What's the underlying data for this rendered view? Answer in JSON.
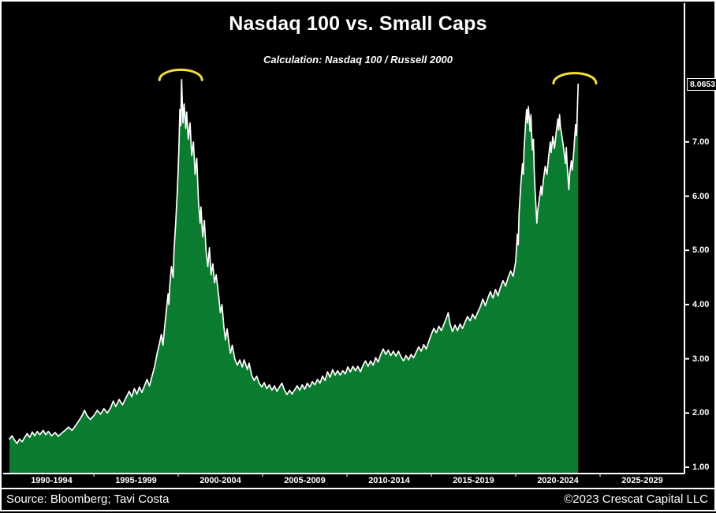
{
  "title": "Nasdaq 100 vs. Small Caps",
  "subtitle": "Calculation: Nasdaq 100 / Russell 2000",
  "footer": {
    "source": "Source: Bloomberg; Tavi Costa",
    "copyright": "©2023 Crescat Capital LLC"
  },
  "colors": {
    "background": "#000000",
    "area_fill": "#0b7b2f",
    "line": "#ffffff",
    "axis": "#ffffff",
    "highlight_arc": "#f7df3a",
    "text": "#ffffff"
  },
  "chart_data": {
    "type": "area",
    "title": "Nasdaq 100 vs. Small Caps",
    "subtitle": "Calculation: Nasdaq 100 / Russell 2000",
    "grid": false,
    "legend": false,
    "current_value": 8.0653,
    "current_value_label": "8.0653",
    "x_axis": {
      "min_year": 1990,
      "max_year": 2030,
      "tick_labels": [
        "1990-1994",
        "1995-1999",
        "2000-2004",
        "2005-2009",
        "2010-2014",
        "2015-2019",
        "2020-2024",
        "2025-2029"
      ],
      "tick_center_years": [
        1992.5,
        1997.5,
        2002.5,
        2007.5,
        2012.5,
        2017.5,
        2022.5,
        2027.5
      ],
      "boundary_years": [
        1995,
        2000,
        2005,
        2010,
        2015,
        2020,
        2025
      ]
    },
    "y_axis": {
      "min": 0.88,
      "max": 8.2,
      "ticks": [
        7,
        6,
        5,
        4,
        3,
        2,
        1
      ],
      "tick_labels": [
        "7.00",
        "6.00",
        "5.00",
        "4.00",
        "3.00",
        "2.00",
        "1.00"
      ]
    },
    "annotations": [
      {
        "type": "arc",
        "label": "dot-com bubble peak highlight",
        "center_year": 2000.15,
        "apex_value": 8.33
      },
      {
        "type": "arc",
        "label": "current peak highlight",
        "center_year": 2023.5,
        "apex_value": 8.27
      }
    ],
    "series": [
      {
        "name": "Nasdaq 100 / Russell 2000",
        "points": [
          [
            1990.0,
            1.52
          ],
          [
            1990.15,
            1.58
          ],
          [
            1990.3,
            1.5
          ],
          [
            1990.45,
            1.44
          ],
          [
            1990.6,
            1.52
          ],
          [
            1990.75,
            1.47
          ],
          [
            1990.9,
            1.55
          ],
          [
            1991.05,
            1.62
          ],
          [
            1991.2,
            1.55
          ],
          [
            1991.35,
            1.65
          ],
          [
            1991.5,
            1.58
          ],
          [
            1991.65,
            1.66
          ],
          [
            1991.8,
            1.6
          ],
          [
            1992.0,
            1.68
          ],
          [
            1992.15,
            1.6
          ],
          [
            1992.3,
            1.66
          ],
          [
            1992.5,
            1.58
          ],
          [
            1992.7,
            1.64
          ],
          [
            1992.9,
            1.57
          ],
          [
            1993.1,
            1.63
          ],
          [
            1993.3,
            1.68
          ],
          [
            1993.5,
            1.74
          ],
          [
            1993.7,
            1.68
          ],
          [
            1993.9,
            1.76
          ],
          [
            1994.1,
            1.85
          ],
          [
            1994.3,
            1.95
          ],
          [
            1994.45,
            2.05
          ],
          [
            1994.6,
            1.95
          ],
          [
            1994.8,
            1.88
          ],
          [
            1995.0,
            1.95
          ],
          [
            1995.2,
            2.05
          ],
          [
            1995.4,
            1.98
          ],
          [
            1995.6,
            2.08
          ],
          [
            1995.8,
            2.0
          ],
          [
            1996.0,
            2.1
          ],
          [
            1996.15,
            2.22
          ],
          [
            1996.3,
            2.12
          ],
          [
            1996.5,
            2.25
          ],
          [
            1996.7,
            2.15
          ],
          [
            1996.9,
            2.28
          ],
          [
            1997.1,
            2.4
          ],
          [
            1997.25,
            2.3
          ],
          [
            1997.4,
            2.45
          ],
          [
            1997.55,
            2.35
          ],
          [
            1997.7,
            2.48
          ],
          [
            1997.85,
            2.38
          ],
          [
            1998.0,
            2.5
          ],
          [
            1998.15,
            2.62
          ],
          [
            1998.3,
            2.5
          ],
          [
            1998.45,
            2.68
          ],
          [
            1998.6,
            2.85
          ],
          [
            1998.75,
            3.1
          ],
          [
            1998.9,
            3.3
          ],
          [
            1999.0,
            3.45
          ],
          [
            1999.1,
            3.25
          ],
          [
            1999.2,
            3.6
          ],
          [
            1999.3,
            3.9
          ],
          [
            1999.4,
            4.2
          ],
          [
            1999.45,
            4.0
          ],
          [
            1999.5,
            4.35
          ],
          [
            1999.6,
            4.7
          ],
          [
            1999.7,
            4.5
          ],
          [
            1999.75,
            5.0
          ],
          [
            1999.85,
            5.5
          ],
          [
            1999.95,
            6.1
          ],
          [
            2000.0,
            6.5
          ],
          [
            2000.05,
            7.0
          ],
          [
            2000.1,
            7.6
          ],
          [
            2000.15,
            7.3
          ],
          [
            2000.2,
            8.15
          ],
          [
            2000.28,
            7.35
          ],
          [
            2000.35,
            7.7
          ],
          [
            2000.45,
            7.25
          ],
          [
            2000.5,
            7.55
          ],
          [
            2000.6,
            7.05
          ],
          [
            2000.7,
            7.35
          ],
          [
            2000.8,
            6.75
          ],
          [
            2000.9,
            7.0
          ],
          [
            2001.0,
            6.4
          ],
          [
            2001.1,
            6.7
          ],
          [
            2001.2,
            5.9
          ],
          [
            2001.3,
            5.5
          ],
          [
            2001.35,
            5.8
          ],
          [
            2001.45,
            5.25
          ],
          [
            2001.55,
            5.55
          ],
          [
            2001.65,
            5.0
          ],
          [
            2001.75,
            4.7
          ],
          [
            2001.85,
            5.05
          ],
          [
            2001.95,
            4.55
          ],
          [
            2002.05,
            4.75
          ],
          [
            2002.15,
            4.4
          ],
          [
            2002.25,
            4.55
          ],
          [
            2002.4,
            4.15
          ],
          [
            2002.5,
            3.85
          ],
          [
            2002.6,
            4.0
          ],
          [
            2002.7,
            3.6
          ],
          [
            2002.8,
            3.35
          ],
          [
            2002.9,
            3.55
          ],
          [
            2003.0,
            3.3
          ],
          [
            2003.1,
            3.1
          ],
          [
            2003.2,
            3.25
          ],
          [
            2003.35,
            3.0
          ],
          [
            2003.5,
            2.88
          ],
          [
            2003.65,
            2.98
          ],
          [
            2003.8,
            2.85
          ],
          [
            2003.9,
            2.98
          ],
          [
            2004.0,
            2.9
          ],
          [
            2004.1,
            2.8
          ],
          [
            2004.2,
            2.92
          ],
          [
            2004.35,
            2.7
          ],
          [
            2004.5,
            2.6
          ],
          [
            2004.65,
            2.68
          ],
          [
            2004.8,
            2.55
          ],
          [
            2004.95,
            2.48
          ],
          [
            2005.1,
            2.56
          ],
          [
            2005.25,
            2.45
          ],
          [
            2005.4,
            2.52
          ],
          [
            2005.55,
            2.42
          ],
          [
            2005.7,
            2.5
          ],
          [
            2005.85,
            2.4
          ],
          [
            2006.0,
            2.48
          ],
          [
            2006.15,
            2.55
          ],
          [
            2006.3,
            2.42
          ],
          [
            2006.45,
            2.34
          ],
          [
            2006.6,
            2.42
          ],
          [
            2006.75,
            2.35
          ],
          [
            2006.9,
            2.43
          ],
          [
            2007.05,
            2.5
          ],
          [
            2007.2,
            2.42
          ],
          [
            2007.35,
            2.52
          ],
          [
            2007.5,
            2.44
          ],
          [
            2007.65,
            2.55
          ],
          [
            2007.8,
            2.48
          ],
          [
            2007.95,
            2.58
          ],
          [
            2008.1,
            2.52
          ],
          [
            2008.25,
            2.62
          ],
          [
            2008.4,
            2.55
          ],
          [
            2008.55,
            2.68
          ],
          [
            2008.7,
            2.6
          ],
          [
            2008.85,
            2.76
          ],
          [
            2009.0,
            2.66
          ],
          [
            2009.15,
            2.8
          ],
          [
            2009.3,
            2.7
          ],
          [
            2009.45,
            2.78
          ],
          [
            2009.6,
            2.7
          ],
          [
            2009.75,
            2.78
          ],
          [
            2009.9,
            2.72
          ],
          [
            2010.05,
            2.85
          ],
          [
            2010.2,
            2.76
          ],
          [
            2010.35,
            2.86
          ],
          [
            2010.5,
            2.78
          ],
          [
            2010.65,
            2.86
          ],
          [
            2010.8,
            2.76
          ],
          [
            2010.95,
            2.88
          ],
          [
            2011.1,
            2.96
          ],
          [
            2011.25,
            2.86
          ],
          [
            2011.4,
            2.96
          ],
          [
            2011.55,
            2.88
          ],
          [
            2011.7,
            3.02
          ],
          [
            2011.85,
            2.94
          ],
          [
            2012.0,
            3.08
          ],
          [
            2012.15,
            3.18
          ],
          [
            2012.3,
            3.08
          ],
          [
            2012.45,
            3.16
          ],
          [
            2012.6,
            3.06
          ],
          [
            2012.75,
            3.14
          ],
          [
            2012.9,
            3.05
          ],
          [
            2013.05,
            3.14
          ],
          [
            2013.2,
            3.04
          ],
          [
            2013.35,
            2.96
          ],
          [
            2013.5,
            3.06
          ],
          [
            2013.65,
            2.98
          ],
          [
            2013.8,
            3.08
          ],
          [
            2013.95,
            3.02
          ],
          [
            2014.1,
            3.12
          ],
          [
            2014.25,
            3.22
          ],
          [
            2014.4,
            3.14
          ],
          [
            2014.55,
            3.26
          ],
          [
            2014.7,
            3.18
          ],
          [
            2014.85,
            3.32
          ],
          [
            2015.0,
            3.45
          ],
          [
            2015.15,
            3.56
          ],
          [
            2015.3,
            3.48
          ],
          [
            2015.45,
            3.6
          ],
          [
            2015.6,
            3.52
          ],
          [
            2015.75,
            3.64
          ],
          [
            2015.9,
            3.76
          ],
          [
            2016.0,
            3.85
          ],
          [
            2016.1,
            3.66
          ],
          [
            2016.25,
            3.5
          ],
          [
            2016.4,
            3.62
          ],
          [
            2016.55,
            3.52
          ],
          [
            2016.7,
            3.64
          ],
          [
            2016.85,
            3.56
          ],
          [
            2017.0,
            3.68
          ],
          [
            2017.15,
            3.78
          ],
          [
            2017.3,
            3.7
          ],
          [
            2017.45,
            3.82
          ],
          [
            2017.6,
            3.74
          ],
          [
            2017.75,
            3.86
          ],
          [
            2017.9,
            3.96
          ],
          [
            2018.05,
            4.1
          ],
          [
            2018.2,
            3.98
          ],
          [
            2018.35,
            4.12
          ],
          [
            2018.5,
            4.24
          ],
          [
            2018.65,
            4.12
          ],
          [
            2018.8,
            4.28
          ],
          [
            2018.95,
            4.16
          ],
          [
            2019.1,
            4.32
          ],
          [
            2019.25,
            4.44
          ],
          [
            2019.4,
            4.34
          ],
          [
            2019.55,
            4.5
          ],
          [
            2019.7,
            4.62
          ],
          [
            2019.85,
            4.52
          ],
          [
            2020.0,
            4.8
          ],
          [
            2020.1,
            5.3
          ],
          [
            2020.15,
            5.1
          ],
          [
            2020.2,
            5.7
          ],
          [
            2020.3,
            6.2
          ],
          [
            2020.4,
            6.6
          ],
          [
            2020.45,
            6.4
          ],
          [
            2020.5,
            6.9
          ],
          [
            2020.55,
            7.15
          ],
          [
            2020.6,
            7.4
          ],
          [
            2020.65,
            7.6
          ],
          [
            2020.7,
            7.35
          ],
          [
            2020.75,
            7.65
          ],
          [
            2020.8,
            7.45
          ],
          [
            2020.85,
            7.2
          ],
          [
            2020.9,
            7.5
          ],
          [
            2020.95,
            7.1
          ],
          [
            2021.0,
            6.85
          ],
          [
            2021.05,
            7.05
          ],
          [
            2021.1,
            6.45
          ],
          [
            2021.15,
            6.1
          ],
          [
            2021.2,
            5.8
          ],
          [
            2021.25,
            5.5
          ],
          [
            2021.3,
            5.72
          ],
          [
            2021.4,
            5.95
          ],
          [
            2021.5,
            6.18
          ],
          [
            2021.55,
            6.02
          ],
          [
            2021.65,
            6.32
          ],
          [
            2021.75,
            6.55
          ],
          [
            2021.85,
            6.4
          ],
          [
            2021.95,
            6.72
          ],
          [
            2022.05,
            7.0
          ],
          [
            2022.1,
            6.8
          ],
          [
            2022.2,
            7.1
          ],
          [
            2022.3,
            6.88
          ],
          [
            2022.4,
            7.18
          ],
          [
            2022.5,
            7.42
          ],
          [
            2022.55,
            7.22
          ],
          [
            2022.6,
            7.5
          ],
          [
            2022.65,
            7.28
          ],
          [
            2022.75,
            7.08
          ],
          [
            2022.85,
            6.85
          ],
          [
            2022.95,
            6.6
          ],
          [
            2023.0,
            6.9
          ],
          [
            2023.05,
            6.55
          ],
          [
            2023.1,
            6.35
          ],
          [
            2023.15,
            6.12
          ],
          [
            2023.2,
            6.42
          ],
          [
            2023.3,
            6.65
          ],
          [
            2023.35,
            6.48
          ],
          [
            2023.45,
            6.85
          ],
          [
            2023.5,
            7.1
          ],
          [
            2023.55,
            7.32
          ],
          [
            2023.6,
            7.12
          ],
          [
            2023.65,
            7.55
          ],
          [
            2023.7,
            8.0653
          ]
        ]
      }
    ]
  }
}
